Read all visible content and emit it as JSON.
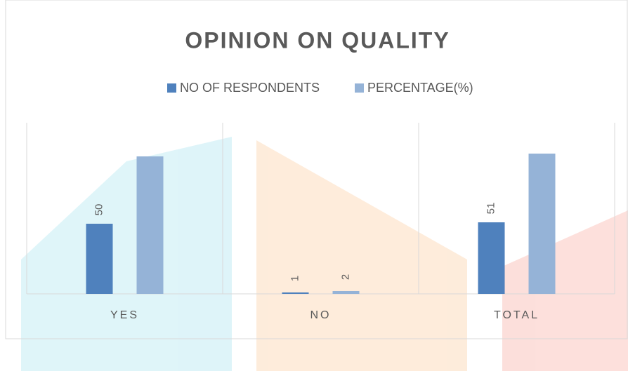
{
  "chart_data": {
    "type": "bar",
    "title": "OPINION ON QUALITY",
    "categories": [
      "YES",
      "NO",
      "TOTAL"
    ],
    "series": [
      {
        "name": "NO OF RESPONDENTS",
        "color": "#4f81bd",
        "values": [
          50,
          1,
          51
        ]
      },
      {
        "name": "PERCENTAGE(%)",
        "color": "#95b3d7",
        "values": [
          98,
          2,
          100
        ],
        "value_labels": [
          null,
          "2",
          null
        ]
      }
    ],
    "ylim": [
      0,
      122
    ],
    "legend": "top"
  }
}
